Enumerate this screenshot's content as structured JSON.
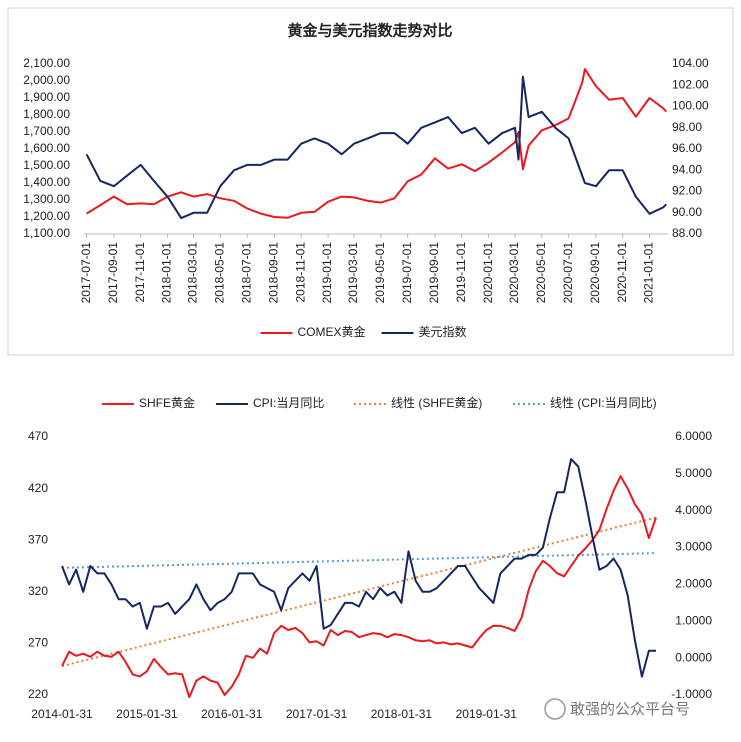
{
  "chart_data": [
    {
      "type": "line",
      "title": "黄金与美元指数走势对比",
      "x": [
        "2017-07-01",
        "2017-08-01",
        "2017-09-01",
        "2017-10-01",
        "2017-11-01",
        "2017-12-01",
        "2018-01-01",
        "2018-02-01",
        "2018-03-01",
        "2018-04-01",
        "2018-05-01",
        "2018-06-01",
        "2018-07-01",
        "2018-08-01",
        "2018-09-01",
        "2018-10-01",
        "2018-11-01",
        "2018-12-01",
        "2019-01-01",
        "2019-02-01",
        "2019-03-01",
        "2019-04-01",
        "2019-05-01",
        "2019-06-01",
        "2019-07-01",
        "2019-08-01",
        "2019-09-01",
        "2019-10-01",
        "2019-11-01",
        "2019-12-01",
        "2020-01-01",
        "2020-02-01",
        "2020-03-01",
        "2020-03-09",
        "2020-03-19",
        "2020-04-01",
        "2020-05-01",
        "2020-06-01",
        "2020-07-01",
        "2020-08-01",
        "2020-08-07",
        "2020-09-01",
        "2020-10-01",
        "2020-11-01",
        "2020-12-01",
        "2021-01-01",
        "2021-02-01",
        "2021-02-08"
      ],
      "series": [
        {
          "name": "COMEX黄金",
          "color": "#e8191f",
          "values": [
            1220,
            1270,
            1320,
            1275,
            1280,
            1275,
            1320,
            1345,
            1320,
            1335,
            1310,
            1295,
            1250,
            1220,
            1200,
            1195,
            1225,
            1230,
            1290,
            1320,
            1315,
            1295,
            1285,
            1310,
            1410,
            1450,
            1545,
            1485,
            1510,
            1470,
            1520,
            1580,
            1640,
            1700,
            1480,
            1620,
            1710,
            1740,
            1780,
            1990,
            2070,
            1970,
            1890,
            1900,
            1790,
            1900,
            1840,
            1820
          ]
        },
        {
          "name": "美元指数",
          "color": "#14285f",
          "axis": "y2",
          "values": [
            95.5,
            93.0,
            92.5,
            93.5,
            94.5,
            93.0,
            91.5,
            89.5,
            90.0,
            90.0,
            92.5,
            94.0,
            94.5,
            94.5,
            95.0,
            95.0,
            96.5,
            97.0,
            96.5,
            95.5,
            96.5,
            97.0,
            97.5,
            97.5,
            96.5,
            98.0,
            98.5,
            99.0,
            97.5,
            98.0,
            96.5,
            97.5,
            98.0,
            95.0,
            102.8,
            99.0,
            99.5,
            98.0,
            97.0,
            93.5,
            92.8,
            92.5,
            94.0,
            94.0,
            91.5,
            89.9,
            90.5,
            90.8
          ]
        }
      ],
      "xlim": [
        "2017-06-25",
        "2021-02-12"
      ],
      "xticks": [
        "2017-07-01",
        "2017-09-01",
        "2017-11-01",
        "2018-01-01",
        "2018-03-01",
        "2018-05-01",
        "2018-07-01",
        "2018-09-01",
        "2018-11-01",
        "2019-01-01",
        "2019-03-01",
        "2019-05-01",
        "2019-07-01",
        "2019-09-01",
        "2019-11-01",
        "2020-01-01",
        "2020-03-01",
        "2020-05-01",
        "2020-07-01",
        "2020-09-01",
        "2020-11-01",
        "2021-01-01"
      ],
      "ylim": [
        1100,
        2100
      ],
      "yticks": [
        {
          "value": 1100,
          "label": "1,100.00"
        },
        {
          "value": 1200,
          "label": "1,200.00"
        },
        {
          "value": 1300,
          "label": "1,300.00"
        },
        {
          "value": 1400,
          "label": "1,400.00"
        },
        {
          "value": 1500,
          "label": "1,500.00"
        },
        {
          "value": 1600,
          "label": "1,600.00"
        },
        {
          "value": 1700,
          "label": "1,700.00"
        },
        {
          "value": 1800,
          "label": "1,800.00"
        },
        {
          "value": 1900,
          "label": "1,900.00"
        },
        {
          "value": 2000,
          "label": "2,000.00"
        },
        {
          "value": 2100,
          "label": "2,100.00"
        }
      ],
      "y2lim": [
        88,
        104
      ],
      "y2ticks": [
        {
          "value": 88,
          "label": "88.00"
        },
        {
          "value": 90,
          "label": "90.00"
        },
        {
          "value": 92,
          "label": "92.00"
        },
        {
          "value": 94,
          "label": "94.00"
        },
        {
          "value": 96,
          "label": "96.00"
        },
        {
          "value": 98,
          "label": "98.00"
        },
        {
          "value": 100,
          "label": "100.00"
        },
        {
          "value": 102,
          "label": "102.00"
        },
        {
          "value": 104,
          "label": "104.00"
        }
      ],
      "legend": "bottom"
    },
    {
      "type": "line",
      "categories": [
        "2014-01-31",
        null,
        null,
        null,
        null,
        null,
        null,
        null,
        null,
        null,
        null,
        null,
        "2015-01-31",
        null,
        null,
        null,
        null,
        null,
        null,
        null,
        null,
        null,
        null,
        null,
        "2016-01-31",
        null,
        null,
        null,
        null,
        null,
        null,
        null,
        null,
        null,
        null,
        null,
        "2017-01-31",
        null,
        null,
        null,
        null,
        null,
        null,
        null,
        null,
        null,
        null,
        null,
        "2018-01-31",
        null,
        null,
        null,
        null,
        null,
        null,
        null,
        null,
        null,
        null,
        null,
        "2019-01-31",
        null,
        null,
        null,
        null,
        null,
        null,
        null,
        null,
        null,
        null,
        null,
        null,
        null,
        null,
        null,
        null,
        null,
        null,
        null,
        null,
        null,
        null,
        null,
        null
      ],
      "series": [
        {
          "name": "SHFE黄金",
          "color": "#e8191f",
          "values": [
            248,
            262,
            258,
            260,
            257,
            262,
            258,
            257,
            262,
            252,
            240,
            238,
            243,
            255,
            247,
            240,
            241,
            240,
            218,
            234,
            238,
            234,
            232,
            220,
            228,
            240,
            258,
            256,
            265,
            260,
            280,
            287,
            283,
            285,
            280,
            271,
            272,
            268,
            283,
            278,
            282,
            281,
            276,
            278,
            280,
            279,
            276,
            279,
            278,
            276,
            273,
            272,
            273,
            270,
            271,
            269,
            270,
            268,
            266,
            275,
            283,
            287,
            287,
            285,
            282,
            295,
            322,
            340,
            350,
            345,
            338,
            335,
            345,
            355,
            362,
            370,
            380,
            400,
            418,
            432,
            420,
            405,
            395,
            372,
            392
          ]
        },
        {
          "name": "CPI:当月同比",
          "color": "#14285f",
          "axis": "y2",
          "values": [
            2.5,
            2.0,
            2.4,
            1.8,
            2.5,
            2.3,
            2.3,
            2.0,
            1.6,
            1.6,
            1.4,
            1.5,
            0.8,
            1.4,
            1.4,
            1.5,
            1.2,
            1.4,
            1.6,
            2.0,
            1.6,
            1.3,
            1.5,
            1.6,
            1.8,
            2.3,
            2.3,
            2.3,
            2.0,
            1.9,
            1.8,
            1.3,
            1.9,
            2.1,
            2.3,
            2.1,
            2.5,
            0.8,
            0.9,
            1.2,
            1.5,
            1.5,
            1.4,
            1.8,
            1.6,
            1.9,
            1.7,
            1.8,
            1.5,
            2.9,
            2.1,
            1.8,
            1.8,
            1.9,
            2.1,
            2.3,
            2.5,
            2.5,
            2.2,
            1.9,
            1.7,
            1.5,
            2.3,
            2.5,
            2.7,
            2.7,
            2.8,
            2.8,
            3.0,
            3.8,
            4.5,
            4.5,
            5.4,
            5.2,
            4.3,
            3.3,
            2.4,
            2.5,
            2.7,
            2.4,
            1.7,
            0.5,
            -0.5,
            0.2,
            0.2
          ]
        }
      ],
      "trendlines": [
        {
          "name": "线性 (SHFE黄金)",
          "color": "#ed7d31",
          "values": [
            248,
            392
          ]
        },
        {
          "name": "线性 (CPI:当月同比)",
          "color": "#5b9bd5",
          "axis": "y2",
          "values": [
            2.45,
            2.85
          ]
        }
      ],
      "ylim": [
        220,
        470
      ],
      "yticks": [
        220,
        270,
        320,
        370,
        420,
        470
      ],
      "y2lim": [
        -1,
        6
      ],
      "y2ticks": [
        {
          "value": -1,
          "label": "-1.0000"
        },
        {
          "value": 0,
          "label": "0.0000"
        },
        {
          "value": 1,
          "label": "1.0000"
        },
        {
          "value": 2,
          "label": "2.0000"
        },
        {
          "value": 3,
          "label": "3.0000"
        },
        {
          "value": 4,
          "label": "4.0000"
        },
        {
          "value": 5,
          "label": "5.0000"
        },
        {
          "value": 6,
          "label": "6.0000"
        }
      ],
      "legend": "top"
    }
  ],
  "watermark": "敢强的公众平台号"
}
